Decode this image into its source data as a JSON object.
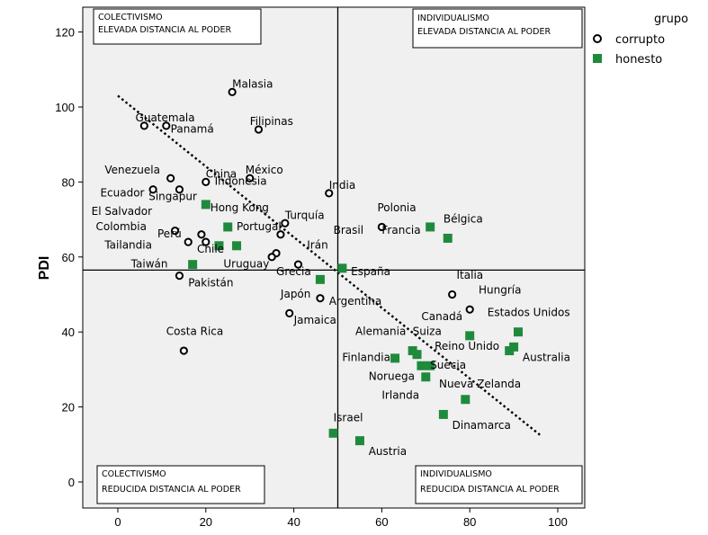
{
  "chart_data": {
    "type": "scatter",
    "title": "",
    "xlabel": "",
    "ylabel": "PDI",
    "xlim": [
      -8,
      106
    ],
    "ylim": [
      -6,
      128
    ],
    "x_ticks": [
      0,
      20,
      40,
      60,
      80,
      100
    ],
    "y_ticks": [
      0,
      20,
      40,
      60,
      80,
      100,
      120
    ],
    "reference_lines": {
      "x": 50,
      "y": 56.5
    },
    "trend_line": {
      "x": [
        0,
        96
      ],
      "y": [
        103,
        12.5
      ],
      "style": "dotted"
    },
    "grid": false,
    "legend": {
      "title": "grupo",
      "position": "top-right",
      "entries": [
        {
          "name": "corrupto",
          "marker": "open-circle"
        },
        {
          "name": "honesto",
          "marker": "filled-square"
        }
      ]
    },
    "quadrant_labels": [
      {
        "id": "tl",
        "line1": "COLECTIVISMO",
        "line2": "ELEVADA DISTANCIA AL PODER"
      },
      {
        "id": "tr",
        "line1": "INDIVIDUALISMO",
        "line2": "ELEVADA DISTANCIA AL PODER"
      },
      {
        "id": "bl",
        "line1": "COLECTIVISMO",
        "line2": "REDUCIDA DISTANCIA AL PODER"
      },
      {
        "id": "br",
        "line1": "INDIVIDUALISMO",
        "line2": "REDUCIDA DISTANCIA AL PODER"
      }
    ],
    "colors": {
      "honesto": "#1f8a3c",
      "corrupto": "#000000",
      "background": "#f0f0f0"
    },
    "series": [
      {
        "name": "corrupto",
        "points": [
          {
            "x": 26,
            "y": 104
          },
          {
            "x": 6,
            "y": 95
          },
          {
            "x": 11,
            "y": 95
          },
          {
            "x": 32,
            "y": 94
          },
          {
            "x": 12,
            "y": 81
          },
          {
            "x": 30,
            "y": 81
          },
          {
            "x": 20,
            "y": 80
          },
          {
            "x": 8,
            "y": 78
          },
          {
            "x": 14,
            "y": 78
          },
          {
            "x": 48,
            "y": 77
          },
          {
            "x": 38,
            "y": 69
          },
          {
            "x": 60,
            "y": 68
          },
          {
            "x": 13,
            "y": 67
          },
          {
            "x": 19,
            "y": 66
          },
          {
            "x": 37,
            "y": 66
          },
          {
            "x": 16,
            "y": 64
          },
          {
            "x": 20,
            "y": 64
          },
          {
            "x": 36,
            "y": 61
          },
          {
            "x": 35,
            "y": 60
          },
          {
            "x": 41,
            "y": 58
          },
          {
            "x": 14,
            "y": 55
          },
          {
            "x": 76,
            "y": 50
          },
          {
            "x": 46,
            "y": 49
          },
          {
            "x": 80,
            "y": 46
          },
          {
            "x": 39,
            "y": 45
          },
          {
            "x": 15,
            "y": 35
          }
        ]
      },
      {
        "name": "honesto",
        "points": [
          {
            "x": 20,
            "y": 74
          },
          {
            "x": 71,
            "y": 68
          },
          {
            "x": 25,
            "y": 68
          },
          {
            "x": 75,
            "y": 65
          },
          {
            "x": 27,
            "y": 63
          },
          {
            "x": 23,
            "y": 63
          },
          {
            "x": 17,
            "y": 58
          },
          {
            "x": 51,
            "y": 57
          },
          {
            "x": 46,
            "y": 54
          },
          {
            "x": 91,
            "y": 40
          },
          {
            "x": 80,
            "y": 39
          },
          {
            "x": 90,
            "y": 36
          },
          {
            "x": 89,
            "y": 35
          },
          {
            "x": 67,
            "y": 35
          },
          {
            "x": 68,
            "y": 34
          },
          {
            "x": 63,
            "y": 33
          },
          {
            "x": 69,
            "y": 31
          },
          {
            "x": 71,
            "y": 31
          },
          {
            "x": 70,
            "y": 28
          },
          {
            "x": 79,
            "y": 22
          },
          {
            "x": 74,
            "y": 18
          },
          {
            "x": 49,
            "y": 13
          },
          {
            "x": 55,
            "y": 11
          }
        ]
      }
    ],
    "annotations": [
      {
        "text": "Malasia",
        "x": 26,
        "y": 104
      },
      {
        "text": "Guatemala",
        "x": 4,
        "y": 95
      },
      {
        "text": "Panamá",
        "x": 12,
        "y": 92
      },
      {
        "text": "Filipinas",
        "x": 30,
        "y": 94
      },
      {
        "text": "México",
        "x": 29,
        "y": 81
      },
      {
        "text": "China",
        "x": 20,
        "y": 80
      },
      {
        "text": "Venezuela",
        "x": -3,
        "y": 81
      },
      {
        "text": "Indonesia",
        "x": 22,
        "y": 78
      },
      {
        "text": "India",
        "x": 48,
        "y": 77
      },
      {
        "text": "Ecuador",
        "x": -4,
        "y": 75
      },
      {
        "text": "Singapur",
        "x": 7,
        "y": 74
      },
      {
        "text": "Hong Kong",
        "x": 21,
        "y": 71
      },
      {
        "text": "Polonia",
        "x": 59,
        "y": 71
      },
      {
        "text": "El Salvador",
        "x": -6,
        "y": 70
      },
      {
        "text": "Bélgica",
        "x": 74,
        "y": 68
      },
      {
        "text": "Turquía",
        "x": 38,
        "y": 69
      },
      {
        "text": "Colombia",
        "x": -5,
        "y": 66
      },
      {
        "text": "Portugal",
        "x": 27,
        "y": 66
      },
      {
        "text": "Perú",
        "x": 9,
        "y": 64
      },
      {
        "text": "Francia",
        "x": 60,
        "y": 65
      },
      {
        "text": "Brasil",
        "x": 49,
        "y": 65
      },
      {
        "text": "Tailandia",
        "x": -3,
        "y": 61
      },
      {
        "text": "Irán",
        "x": 43,
        "y": 61
      },
      {
        "text": "Chile",
        "x": 18,
        "y": 60
      },
      {
        "text": "Taiwán",
        "x": 3,
        "y": 56
      },
      {
        "text": "Uruguay",
        "x": 24,
        "y": 56
      },
      {
        "text": "Grecia",
        "x": 36,
        "y": 54
      },
      {
        "text": "España",
        "x": 53,
        "y": 54
      },
      {
        "text": "Italia",
        "x": 77,
        "y": 53
      },
      {
        "text": "Pakistán",
        "x": 16,
        "y": 51
      },
      {
        "text": "Hungría",
        "x": 82,
        "y": 49
      },
      {
        "text": "Japón",
        "x": 37,
        "y": 48
      },
      {
        "text": "Argentina",
        "x": 48,
        "y": 46
      },
      {
        "text": "Canadá",
        "x": 69,
        "y": 42
      },
      {
        "text": "Estados Unidos",
        "x": 84,
        "y": 43
      },
      {
        "text": "Jamaica",
        "x": 40,
        "y": 41
      },
      {
        "text": "Costa Rica",
        "x": 11,
        "y": 38
      },
      {
        "text": "Alemania",
        "x": 54,
        "y": 38
      },
      {
        "text": "Suiza",
        "x": 67,
        "y": 38
      },
      {
        "text": "Reino Unido",
        "x": 72,
        "y": 34
      },
      {
        "text": "Australia",
        "x": 92,
        "y": 31
      },
      {
        "text": "Finlandia",
        "x": 51,
        "y": 31
      },
      {
        "text": "Suecia",
        "x": 71,
        "y": 29
      },
      {
        "text": "Noruega",
        "x": 57,
        "y": 26
      },
      {
        "text": "Nueva Zelanda",
        "x": 73,
        "y": 24
      },
      {
        "text": "Irlanda",
        "x": 60,
        "y": 21
      },
      {
        "text": "Israel",
        "x": 49,
        "y": 15
      },
      {
        "text": "Dinamarca",
        "x": 76,
        "y": 13
      },
      {
        "text": "Austria",
        "x": 57,
        "y": 6
      }
    ]
  }
}
